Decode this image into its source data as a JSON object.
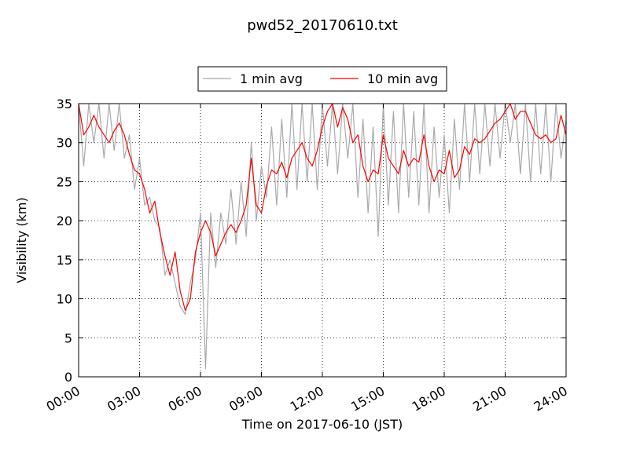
{
  "chart_data": {
    "type": "line",
    "title": "pwd52_20170610.txt",
    "xlabel": "Time on 2017-06-10 (JST)",
    "ylabel": "Visibility (km)",
    "x": [
      0,
      0.25,
      0.5,
      0.75,
      1,
      1.25,
      1.5,
      1.75,
      2,
      2.25,
      2.5,
      2.75,
      3,
      3.25,
      3.5,
      3.75,
      4,
      4.25,
      4.5,
      4.75,
      5,
      5.25,
      5.5,
      5.75,
      6,
      6.25,
      6.5,
      6.75,
      7,
      7.25,
      7.5,
      7.75,
      8,
      8.25,
      8.5,
      8.75,
      9,
      9.25,
      9.5,
      9.75,
      10,
      10.25,
      10.5,
      10.75,
      11,
      11.25,
      11.5,
      11.75,
      12,
      12.25,
      12.5,
      12.75,
      13,
      13.25,
      13.5,
      13.75,
      14,
      14.25,
      14.5,
      14.75,
      15,
      15.25,
      15.5,
      15.75,
      16,
      16.25,
      16.5,
      16.75,
      17,
      17.25,
      17.5,
      17.75,
      18,
      18.25,
      18.5,
      18.75,
      19,
      19.25,
      19.5,
      19.75,
      20,
      20.25,
      20.5,
      20.75,
      21,
      21.25,
      21.5,
      21.75,
      22,
      22.25,
      22.5,
      22.75,
      23,
      23.25,
      23.5,
      23.75,
      24
    ],
    "series": [
      {
        "name": "1 min avg",
        "color": "#a9a9a9",
        "values": [
          35,
          27,
          35,
          30,
          35,
          28,
          35,
          29,
          35,
          28,
          31,
          24,
          28,
          22,
          23,
          20,
          19,
          13,
          15,
          12,
          9,
          8,
          12,
          15,
          21,
          1,
          21,
          14,
          21,
          17,
          24,
          17,
          25,
          18,
          30,
          20,
          27,
          23,
          32,
          22,
          33,
          23,
          35,
          24,
          35,
          25,
          35,
          24,
          35,
          27,
          35,
          26,
          35,
          28,
          35,
          23,
          33,
          21,
          32,
          18,
          35,
          22,
          34,
          21,
          35,
          23,
          34,
          22,
          35,
          21,
          32,
          23,
          31,
          21,
          33,
          24,
          35,
          25,
          35,
          26,
          35,
          27,
          35,
          28,
          35,
          30,
          35,
          26,
          35,
          25,
          35,
          26,
          35,
          25,
          35,
          28,
          33
        ]
      },
      {
        "name": "10 min avg",
        "color": "#ff0000",
        "values": [
          35,
          31,
          32,
          33.5,
          32,
          31,
          30,
          31.5,
          32.5,
          31,
          28.5,
          26.5,
          26,
          24,
          21,
          22.5,
          18.5,
          15.5,
          13,
          16,
          11,
          8.5,
          10,
          16,
          18.5,
          20,
          18.5,
          15.5,
          17,
          18.5,
          19.5,
          18.5,
          20,
          22,
          28,
          22,
          21,
          24.5,
          26.5,
          26,
          27.5,
          25.5,
          28,
          29,
          30,
          28,
          27,
          29,
          32,
          34,
          35,
          32,
          34.5,
          33,
          30,
          31,
          27,
          25,
          26.5,
          26,
          31,
          28,
          27,
          26,
          29,
          27,
          28,
          27.5,
          31,
          27,
          25,
          26.5,
          26,
          29,
          25.5,
          26.5,
          29.5,
          28.5,
          30.5,
          30,
          30.5,
          31.5,
          32.5,
          33,
          34,
          35,
          33,
          34,
          34,
          32.5,
          31,
          30.5,
          31,
          30,
          30.5,
          33.5,
          31
        ]
      }
    ],
    "xlim": [
      0,
      24
    ],
    "xticks": [
      {
        "value": 0,
        "label": "00:00"
      },
      {
        "value": 3,
        "label": "03:00"
      },
      {
        "value": 6,
        "label": "06:00"
      },
      {
        "value": 9,
        "label": "09:00"
      },
      {
        "value": 12,
        "label": "12:00"
      },
      {
        "value": 15,
        "label": "15:00"
      },
      {
        "value": 18,
        "label": "18:00"
      },
      {
        "value": 21,
        "label": "21:00"
      },
      {
        "value": 24,
        "label": "24:00"
      }
    ],
    "ylim": [
      0,
      35
    ],
    "yticks": [
      0,
      5,
      10,
      15,
      20,
      25,
      30,
      35
    ],
    "grid": true,
    "legend": "upper center"
  }
}
